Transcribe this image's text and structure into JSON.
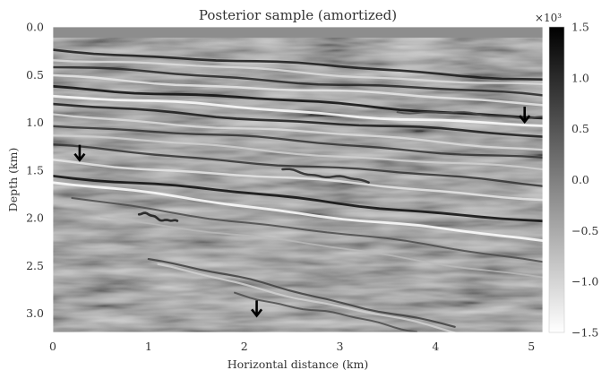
{
  "figure": {
    "title": "Posterior sample (amortized)",
    "xlabel": "Horizontal distance (km)",
    "ylabel": "Depth (km)",
    "colorbar_multiplier": "×10³"
  },
  "chart_data": {
    "type": "heatmap",
    "title": "Posterior sample (amortized)",
    "xlabel": "Horizontal distance (km)",
    "ylabel": "Depth (km)",
    "xlim": [
      0,
      5.12
    ],
    "ylim": [
      3.2,
      0
    ],
    "x_ticks": [
      0,
      1,
      2,
      3,
      4,
      5
    ],
    "x_tick_labels": [
      "0",
      "1",
      "2",
      "3",
      "4",
      "5"
    ],
    "y_ticks": [
      0.0,
      0.5,
      1.0,
      1.5,
      2.0,
      2.5,
      3.0
    ],
    "y_tick_labels": [
      "0.0",
      "0.5",
      "1.0",
      "1.5",
      "2.0",
      "2.5",
      "3.0"
    ],
    "colorscale": "greys (white = -1.5, black = 1.5)",
    "colorbar": {
      "range": [
        -1.5,
        1.5
      ],
      "ticks": [
        1.5,
        1.0,
        0.5,
        0.0,
        -0.5,
        -1.0,
        -1.5
      ],
      "tick_labels": [
        "1.5",
        "1.0",
        "0.5",
        "0.0",
        "−0.5",
        "−1.0",
        "−1.5"
      ],
      "multiplier": "×10³"
    },
    "arrows": [
      {
        "name": "arrow",
        "x": 0.28,
        "y": 1.32
      },
      {
        "name": "arrow",
        "x": 4.93,
        "y": 0.92
      },
      {
        "name": "arrow",
        "x": 2.13,
        "y": 2.95
      }
    ],
    "reflectors": [
      {
        "x0": 0.0,
        "y0": 0.24,
        "x1": 5.12,
        "y1": 0.55,
        "amp": 0.9
      },
      {
        "x0": 0.0,
        "y0": 0.33,
        "x1": 5.12,
        "y1": 0.62,
        "amp": -0.7
      },
      {
        "x0": 0.0,
        "y0": 0.42,
        "x1": 5.12,
        "y1": 0.72,
        "amp": 0.8
      },
      {
        "x0": 0.0,
        "y0": 0.52,
        "x1": 5.12,
        "y1": 0.8,
        "amp": -0.8
      },
      {
        "x0": 0.0,
        "y0": 0.62,
        "x1": 5.12,
        "y1": 0.95,
        "amp": 1.0
      },
      {
        "x0": 0.0,
        "y0": 0.72,
        "x1": 5.12,
        "y1": 1.05,
        "amp": -1.0
      },
      {
        "x0": 0.0,
        "y0": 0.82,
        "x1": 5.12,
        "y1": 1.15,
        "amp": 0.9
      },
      {
        "x0": 0.0,
        "y0": 0.92,
        "x1": 5.12,
        "y1": 1.28,
        "amp": -0.7
      },
      {
        "x0": 0.0,
        "y0": 1.02,
        "x1": 5.12,
        "y1": 1.38,
        "amp": 0.7
      },
      {
        "x0": 0.0,
        "y0": 1.13,
        "x1": 5.12,
        "y1": 1.5,
        "amp": -0.6
      },
      {
        "x0": 0.0,
        "y0": 1.25,
        "x1": 5.12,
        "y1": 1.65,
        "amp": 0.7
      },
      {
        "x0": 0.0,
        "y0": 1.4,
        "x1": 5.12,
        "y1": 1.8,
        "amp": -0.8
      },
      {
        "x0": 0.0,
        "y0": 1.55,
        "x1": 5.12,
        "y1": 2.05,
        "amp": 1.0
      },
      {
        "x0": 0.0,
        "y0": 1.63,
        "x1": 5.12,
        "y1": 2.25,
        "amp": -1.0
      },
      {
        "x0": 0.2,
        "y0": 1.8,
        "x1": 5.12,
        "y1": 2.45,
        "amp": 0.5
      },
      {
        "x0": 0.5,
        "y0": 1.98,
        "x1": 5.12,
        "y1": 2.62,
        "amp": -0.4
      },
      {
        "x0": 1.0,
        "y0": 2.42,
        "x1": 4.2,
        "y1": 3.15,
        "amp": 0.6
      },
      {
        "x0": 1.1,
        "y0": 2.5,
        "x1": 4.3,
        "y1": 3.22,
        "amp": -0.6
      },
      {
        "x0": 1.9,
        "y0": 2.8,
        "x1": 3.8,
        "y1": 3.18,
        "amp": 0.5
      },
      {
        "x0": 3.6,
        "y0": 0.88,
        "x1": 5.12,
        "y1": 0.95,
        "amp": 0.5
      },
      {
        "x0": 0.9,
        "y0": 1.95,
        "x1": 1.3,
        "y1": 2.05,
        "amp": 0.9
      },
      {
        "x0": 2.4,
        "y0": 1.5,
        "x1": 3.3,
        "y1": 1.62,
        "amp": 0.8
      }
    ]
  }
}
